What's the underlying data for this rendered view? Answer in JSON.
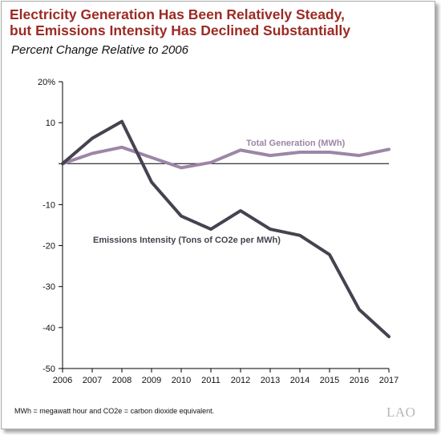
{
  "chart_data": {
    "type": "line",
    "title": "Electricity Generation Has Been Relatively Steady,\nbut Emissions Intensity Has Declined Substantially",
    "subtitle": "Percent Change Relative to 2006",
    "x": [
      "2006",
      "2007",
      "2008",
      "2009",
      "2010",
      "2011",
      "2012",
      "2013",
      "2014",
      "2015",
      "2016",
      "2017"
    ],
    "y_ticks": [
      "20%",
      "10",
      "",
      "-10",
      "-20",
      "-30",
      "-40",
      "-50"
    ],
    "y_tick_values": [
      20,
      10,
      0,
      -10,
      -20,
      -30,
      -40,
      -50
    ],
    "ylim": [
      -50,
      20
    ],
    "series": [
      {
        "name": "Total Generation (MWh)",
        "color": "#9c86a6",
        "values": [
          0,
          2.5,
          4,
          1.5,
          -1,
          0.3,
          3.3,
          2,
          2.8,
          2.8,
          2,
          3.5
        ]
      },
      {
        "name": "Emissions Intensity (Tons of CO2e per MWh)",
        "color": "#47424f",
        "values": [
          0,
          6.2,
          10.3,
          -4.5,
          -12.8,
          -16,
          -11.5,
          -16,
          -17.5,
          -22.2,
          -35.6,
          -42.2
        ]
      }
    ],
    "grid": false
  },
  "footer": {
    "note": "MWh = megawatt hour and CO2e = carbon dioxide equivalent.",
    "logo": "LAO"
  }
}
